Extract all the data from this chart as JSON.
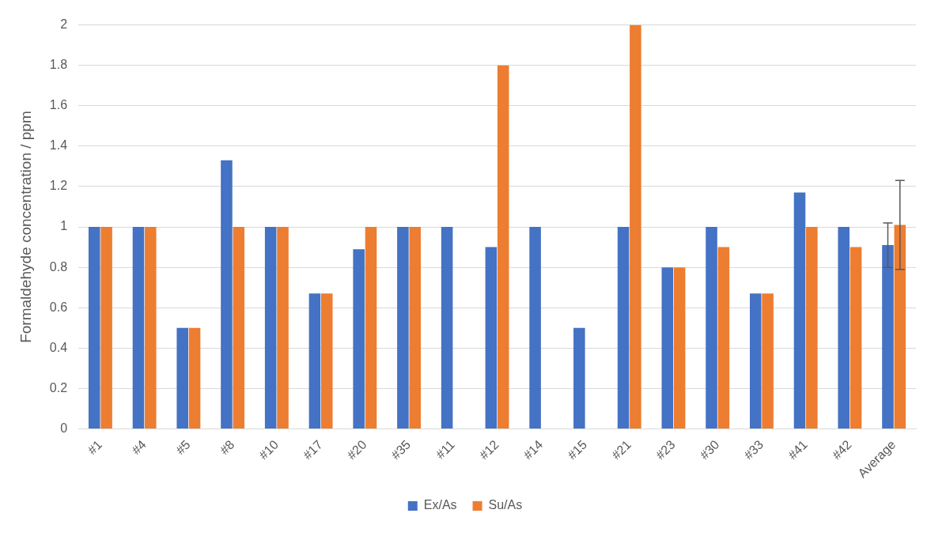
{
  "chart_data": {
    "type": "bar",
    "ylabel": "Formaldehyde concentration / ppm",
    "categories": [
      "#1",
      "#4",
      "#5",
      "#8",
      "#10",
      "#17",
      "#20",
      "#35",
      "#11",
      "#12",
      "#14",
      "#15",
      "#21",
      "#23",
      "#30",
      "#33",
      "#41",
      "#42",
      "Average"
    ],
    "series": [
      {
        "name": "Ex/As",
        "color": "#4472c4",
        "values": [
          1,
          1,
          0.5,
          1.33,
          1,
          0.67,
          0.89,
          1,
          1,
          0.9,
          1,
          0.5,
          1,
          0.8,
          1,
          0.67,
          1.17,
          1,
          0.91
        ],
        "errors": [
          null,
          null,
          null,
          null,
          null,
          null,
          null,
          null,
          null,
          null,
          null,
          null,
          null,
          null,
          null,
          null,
          null,
          null,
          0.11
        ]
      },
      {
        "name": "Su/As",
        "color": "#ed7d31",
        "values": [
          1,
          1,
          0.5,
          1,
          1,
          0.67,
          1,
          1,
          null,
          1.8,
          null,
          null,
          2,
          0.8,
          0.9,
          0.67,
          1,
          0.9,
          1.01
        ],
        "errors": [
          null,
          null,
          null,
          null,
          null,
          null,
          null,
          null,
          null,
          null,
          null,
          null,
          null,
          null,
          null,
          null,
          null,
          null,
          0.22
        ]
      }
    ],
    "ylim": [
      0,
      2
    ],
    "yticks": [
      0,
      0.2,
      0.4,
      0.6,
      0.8,
      1,
      1.2,
      1.4,
      1.6,
      1.8,
      2
    ],
    "grid": "y",
    "legend": "bottom"
  }
}
